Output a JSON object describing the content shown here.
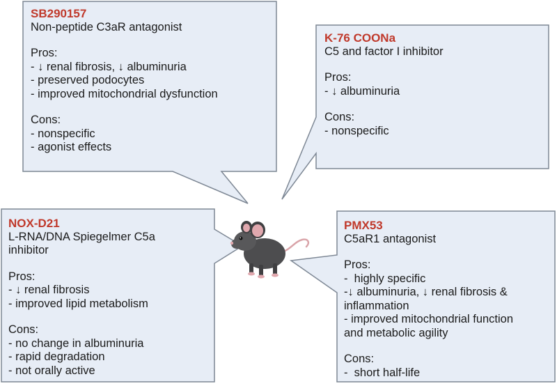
{
  "colors": {
    "bubble_fill": "#e7edf6",
    "bubble_stroke": "#7d8794",
    "title_red": "#c0392b",
    "mouse_body": "#4d4d4f",
    "mouse_ear": "#e0a8ae"
  },
  "panels": {
    "sb290157": {
      "title": "SB290157",
      "subtitle": "Non-peptide C3aR antagonist",
      "pros_label": "Pros:",
      "pros": [
        "- ↓ renal fibrosis, ↓ albuminuria",
        "- preserved podocytes",
        "- improved mitochondrial dysfunction"
      ],
      "cons_label": "Cons:",
      "cons": [
        "- nonspecific",
        "- agonist effects"
      ]
    },
    "k76": {
      "title": "K-76 COONa",
      "subtitle": "C5 and factor I inhibitor",
      "pros_label": "Pros:",
      "pros": [
        "- ↓ albuminuria"
      ],
      "cons_label": "Cons:",
      "cons": [
        "- nonspecific"
      ]
    },
    "noxd21": {
      "title": "NOX-D21",
      "subtitle_line1": "L-RNA/DNA Spiegelmer C5a",
      "subtitle_line2": "inhibitor",
      "pros_label": "Pros:",
      "pros": [
        "- ↓ renal fibrosis",
        "- improved lipid metabolism"
      ],
      "cons_label": "Cons:",
      "cons": [
        "- no change in albuminuria",
        "- rapid degradation",
        "- not orally active"
      ]
    },
    "pmx53": {
      "title": "PMX53",
      "subtitle": "C5aR1 antagonist",
      "pros_label": "Pros:",
      "pros": [
        "-  highly specific",
        "-↓ albuminuria, ↓ renal fibrosis &",
        "inflammation",
        "- improved mitochondrial function",
        "and metabolic agility"
      ],
      "cons_label": "Cons:",
      "cons": [
        "-  short half-life"
      ]
    }
  },
  "mouse_icon": "mouse-illustration"
}
